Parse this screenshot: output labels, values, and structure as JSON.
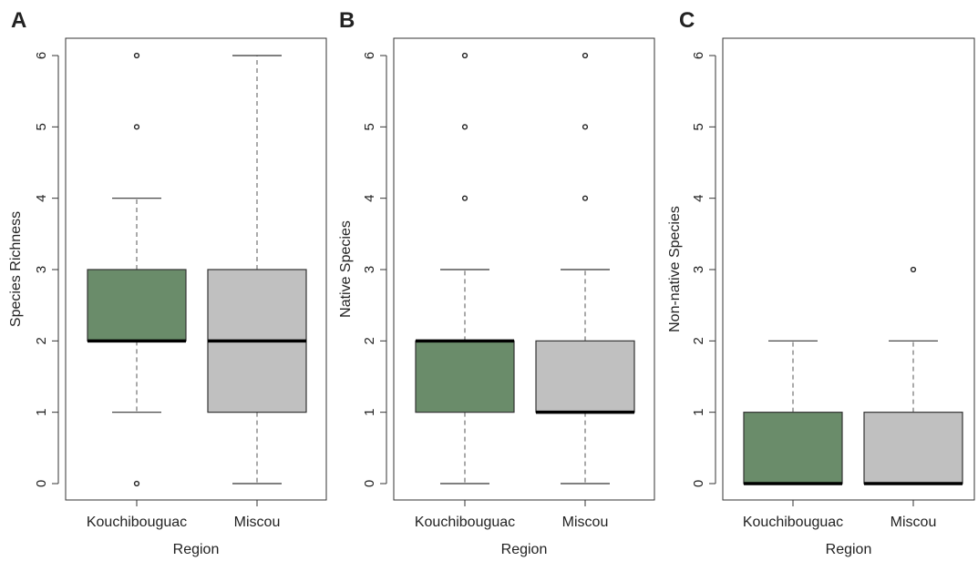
{
  "chart_data": [
    {
      "type": "boxplot",
      "panel_label": "A",
      "xlabel": "Region",
      "ylabel": "Species Richness",
      "ylim": [
        0,
        6
      ],
      "yticks": [
        0,
        1,
        2,
        3,
        4,
        5,
        6
      ],
      "categories": [
        "Kouchibouguac",
        "Miscou"
      ],
      "colors": [
        "#6a8c6a",
        "#c0c0c0"
      ],
      "boxes": [
        {
          "category": "Kouchibouguac",
          "whisker_low": 1,
          "q1": 2,
          "median": 2,
          "q3": 3,
          "whisker_high": 4,
          "outliers": [
            0,
            5,
            6
          ]
        },
        {
          "category": "Miscou",
          "whisker_low": 0,
          "q1": 1,
          "median": 2,
          "q3": 3,
          "whisker_high": 6,
          "outliers": []
        }
      ]
    },
    {
      "type": "boxplot",
      "panel_label": "B",
      "xlabel": "Region",
      "ylabel": "Native Species",
      "ylim": [
        0,
        6
      ],
      "yticks": [
        0,
        1,
        2,
        3,
        4,
        5,
        6
      ],
      "categories": [
        "Kouchibouguac",
        "Miscou"
      ],
      "colors": [
        "#6a8c6a",
        "#c0c0c0"
      ],
      "boxes": [
        {
          "category": "Kouchibouguac",
          "whisker_low": 0,
          "q1": 1,
          "median": 2,
          "q3": 2,
          "whisker_high": 3,
          "outliers": [
            4,
            5,
            6
          ]
        },
        {
          "category": "Miscou",
          "whisker_low": 0,
          "q1": 1,
          "median": 1,
          "q3": 2,
          "whisker_high": 3,
          "outliers": [
            4,
            5,
            6
          ]
        }
      ]
    },
    {
      "type": "boxplot",
      "panel_label": "C",
      "xlabel": "Region",
      "ylabel": "Non-native Species",
      "ylim": [
        0,
        6
      ],
      "yticks": [
        0,
        1,
        2,
        3,
        4,
        5,
        6
      ],
      "categories": [
        "Kouchibouguac",
        "Miscou"
      ],
      "colors": [
        "#6a8c6a",
        "#c0c0c0"
      ],
      "boxes": [
        {
          "category": "Kouchibouguac",
          "whisker_low": 0,
          "q1": 0,
          "median": 0,
          "q3": 1,
          "whisker_high": 2,
          "outliers": []
        },
        {
          "category": "Miscou",
          "whisker_low": 0,
          "q1": 0,
          "median": 0,
          "q3": 1,
          "whisker_high": 2,
          "outliers": [
            3
          ]
        }
      ]
    }
  ]
}
